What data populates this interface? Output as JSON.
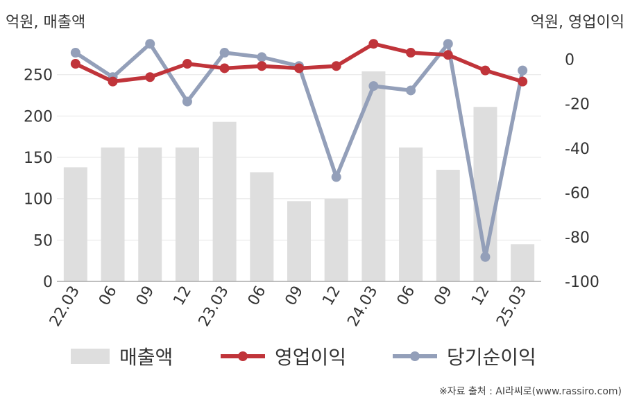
{
  "header": {
    "left_unit": "억원, 매출액",
    "right_unit": "억원, 영업이익"
  },
  "legend": {
    "revenue": "매출액",
    "operating_profit": "영업이익",
    "net_income": "당기순이익"
  },
  "source": "※자료 출처 : AI라씨로(www.rassiro.com)",
  "colors": {
    "revenue": "#dedede",
    "operating_profit": "#c0343a",
    "net_income": "#939fb9",
    "grid": "#e6e6e6",
    "axis": "#aaaaaa",
    "text": "#333333"
  },
  "chart_data": {
    "type": "bar+line",
    "categories": [
      "22.03",
      "06",
      "09",
      "12",
      "23.03",
      "06",
      "09",
      "12",
      "24.03",
      "06",
      "09",
      "12",
      "25.03"
    ],
    "left_axis": {
      "ylim": [
        0,
        290
      ],
      "ticks": [
        0,
        50,
        100,
        150,
        200,
        250
      ]
    },
    "right_axis": {
      "ylim": [
        -100,
        8
      ],
      "ticks": [
        0,
        -20,
        -40,
        -60,
        -80,
        -100
      ]
    },
    "series": [
      {
        "name": "매출액",
        "type": "bar",
        "axis": "left",
        "values": [
          138,
          162,
          162,
          162,
          193,
          132,
          97,
          100,
          254,
          162,
          135,
          211,
          45
        ]
      },
      {
        "name": "영업이익",
        "type": "line",
        "axis": "right",
        "values": [
          -2,
          -10,
          -8,
          -2,
          -4,
          -3,
          -4,
          -3,
          7,
          3,
          2,
          -5,
          -10
        ]
      },
      {
        "name": "당기순이익",
        "type": "line",
        "axis": "right",
        "values": [
          3,
          -8,
          7,
          -19,
          3,
          1,
          -3,
          -53,
          -12,
          -14,
          7,
          -89,
          -5
        ]
      }
    ]
  }
}
